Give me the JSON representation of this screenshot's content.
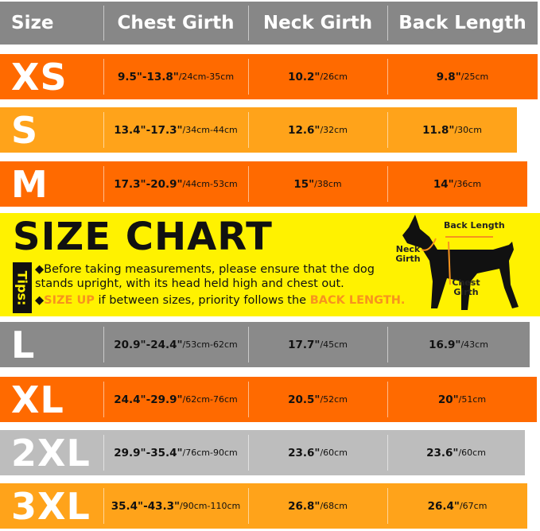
{
  "header": {
    "size": "Size",
    "chest": "Chest Girth",
    "neck": "Neck Girth",
    "back": "Back Length",
    "color": "#878787"
  },
  "rows": [
    {
      "size": "XS",
      "chest": "9.5\"-13.8\"",
      "chest_cm": "/24cm-35cm",
      "neck": "10.2\"",
      "neck_cm": "/26cm",
      "back": "9.8\"",
      "back_cm": "/25cm",
      "color": "#ff6a00"
    },
    {
      "size": "S",
      "chest": "13.4\"-17.3\"",
      "chest_cm": "/34cm-44cm",
      "neck": "12.6\"",
      "neck_cm": "/32cm",
      "back": "11.8\"",
      "back_cm": "/30cm",
      "color": "#ffa31a"
    },
    {
      "size": "M",
      "chest": "17.3\"-20.9\"",
      "chest_cm": "/44cm-53cm",
      "neck": "15\"",
      "neck_cm": "/38cm",
      "back": "14\"",
      "back_cm": "/36cm",
      "color": "#ff6a00"
    },
    {
      "size": "L",
      "chest": "20.9\"-24.4\"",
      "chest_cm": "/53cm-62cm",
      "neck": "17.7\"",
      "neck_cm": "/45cm",
      "back": "16.9\"",
      "back_cm": "/43cm",
      "color": "#8a8a8a"
    },
    {
      "size": "XL",
      "chest": "24.4\"-29.9\"",
      "chest_cm": "/62cm-76cm",
      "neck": "20.5\"",
      "neck_cm": "/52cm",
      "back": "20\"",
      "back_cm": "/51cm",
      "color": "#ff6a00"
    },
    {
      "size": "2XL",
      "chest": "29.9\"-35.4\"",
      "chest_cm": "/76cm-90cm",
      "neck": "23.6\"",
      "neck_cm": "/60cm",
      "back": "23.6\"",
      "back_cm": "/60cm",
      "color": "#bdbdbd"
    },
    {
      "size": "3XL",
      "chest": "35.4\"-43.3\"",
      "chest_cm": "/90cm-110cm",
      "neck": "26.8\"",
      "neck_cm": "/68cm",
      "back": "26.4\"",
      "back_cm": "/67cm",
      "color": "#ffa31a"
    }
  ],
  "banner": {
    "title": "SIZE CHART",
    "tips_label": "Tips:",
    "tip1": "Before taking measurements, please ensure that the dog stands upright, with its head held high and chest out.",
    "tip2_hl1": "SIZE UP",
    "tip2_mid": " if between sizes, priority follows the ",
    "tip2_hl2": "BACK LENGTH.",
    "diagram": {
      "back": "Back Length",
      "neck": "Neck Girth",
      "chest": "Chest Girth",
      "icon": "dog-silhouette-icon"
    },
    "color": "#fff200"
  }
}
